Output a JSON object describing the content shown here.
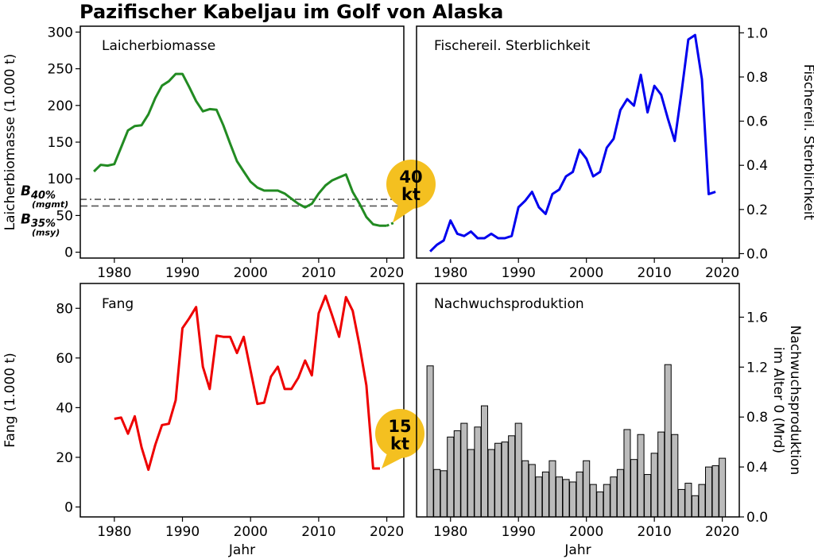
{
  "figure": {
    "title": "Pazifischer Kabeljau im Golf von Alaska"
  },
  "chart_data": [
    {
      "type": "line",
      "title": "Laicherbiomasse",
      "xlabel": "",
      "ylabel": "Laicherbiomasse (1.000 t)",
      "xlim": [
        1975,
        2022.5
      ],
      "ylim": [
        -8,
        308
      ],
      "xticks": [
        1980,
        1990,
        2000,
        2010,
        2020
      ],
      "yticks": [
        0,
        50,
        100,
        150,
        200,
        250,
        300
      ],
      "color": "#228B22",
      "x": [
        1977,
        1978,
        1979,
        1980,
        1981,
        1982,
        1983,
        1984,
        1985,
        1986,
        1987,
        1988,
        1989,
        1990,
        1991,
        1992,
        1993,
        1994,
        1995,
        1996,
        1997,
        1998,
        1999,
        2000,
        2001,
        2002,
        2003,
        2004,
        2005,
        2006,
        2007,
        2008,
        2009,
        2010,
        2011,
        2012,
        2013,
        2014,
        2015,
        2016,
        2017,
        2018,
        2019,
        2020
      ],
      "y": [
        110,
        119,
        118,
        120,
        143,
        166,
        172,
        173,
        188,
        210,
        227,
        233,
        243,
        243,
        225,
        206,
        192,
        195,
        194,
        173,
        148,
        124,
        110,
        96,
        88,
        84,
        84,
        84,
        80,
        73,
        66,
        61,
        66,
        80,
        91,
        98,
        102,
        106,
        82,
        66,
        48,
        38,
        36,
        36
      ],
      "projection": {
        "x": [
          2020,
          2021
        ],
        "y": [
          36,
          40
        ]
      },
      "reference_lines": [
        {
          "label": "B40%",
          "sublabel": "(mgmt)",
          "value": 72,
          "style": "dash-dot",
          "color": "#555555"
        },
        {
          "label": "B35%",
          "sublabel": "(msy)",
          "value": 63,
          "style": "dashed",
          "color": "#555555"
        }
      ],
      "callout": {
        "value": "40",
        "unit": "kt",
        "color": "#F4C020"
      }
    },
    {
      "type": "line",
      "title": "Fischereil. Sterblichkeit",
      "xlabel": "",
      "ylabel": "Fischereil. Sterblichkeit",
      "xlim": [
        1975,
        2022.5
      ],
      "ylim": [
        -0.02,
        1.03
      ],
      "xticks": [
        1980,
        1990,
        2000,
        2010,
        2020
      ],
      "yticks": [
        0.0,
        0.2,
        0.4,
        0.6,
        0.8,
        1.0
      ],
      "color": "#0000EE",
      "x": [
        1977,
        1978,
        1979,
        1980,
        1981,
        1982,
        1983,
        1984,
        1985,
        1986,
        1987,
        1988,
        1989,
        1990,
        1991,
        1992,
        1993,
        1994,
        1995,
        1996,
        1997,
        1998,
        1999,
        2000,
        2001,
        2002,
        2003,
        2004,
        2005,
        2006,
        2007,
        2008,
        2009,
        2010,
        2011,
        2012,
        2013,
        2014,
        2015,
        2016,
        2017,
        2018,
        2019
      ],
      "y": [
        0.01,
        0.04,
        0.06,
        0.15,
        0.09,
        0.08,
        0.1,
        0.07,
        0.07,
        0.09,
        0.07,
        0.07,
        0.08,
        0.21,
        0.24,
        0.28,
        0.21,
        0.18,
        0.27,
        0.29,
        0.35,
        0.37,
        0.47,
        0.43,
        0.35,
        0.37,
        0.48,
        0.52,
        0.65,
        0.7,
        0.67,
        0.81,
        0.64,
        0.76,
        0.72,
        0.61,
        0.51,
        0.73,
        0.97,
        0.99,
        0.79,
        0.27,
        0.28
      ]
    },
    {
      "type": "line",
      "title": "Fang",
      "xlabel": "Jahr",
      "ylabel": "Fang (1.000 t)",
      "xlim": [
        1975,
        2022.5
      ],
      "ylim": [
        -4,
        90
      ],
      "xticks": [
        1980,
        1990,
        2000,
        2010,
        2020
      ],
      "yticks": [
        0,
        20,
        40,
        60,
        80
      ],
      "color": "#EE0000",
      "x": [
        1980,
        1981,
        1982,
        1983,
        1984,
        1985,
        1986,
        1987,
        1988,
        1989,
        1990,
        1991,
        1992,
        1993,
        1994,
        1995,
        1996,
        1997,
        1998,
        1999,
        2000,
        2001,
        2002,
        2003,
        2004,
        2005,
        2006,
        2007,
        2008,
        2009,
        2010,
        2011,
        2012,
        2013,
        2014,
        2015,
        2016,
        2017,
        2018,
        2019
      ],
      "y": [
        35.5,
        36,
        29.5,
        36.5,
        24,
        15,
        25,
        33,
        33.5,
        43,
        72,
        76,
        80.5,
        56.5,
        47.5,
        69,
        68.5,
        68.5,
        62,
        68.5,
        55,
        41.5,
        42,
        52.5,
        56.5,
        47.5,
        47.5,
        52,
        59,
        53,
        78,
        85,
        77,
        68.5,
        84.5,
        79,
        65,
        49,
        15.5,
        15.5
      ],
      "callout": {
        "value": "15",
        "unit": "kt",
        "color": "#F4C020"
      }
    },
    {
      "type": "bar",
      "title": "Nachwuchsproduktion",
      "xlabel": "Jahr",
      "ylabel": "Nachwuchsproduktion im Alter 0 (Mrd)",
      "ylabel_lines": [
        "Nachwuchsproduktion",
        "im Alter 0 (Mrd)"
      ],
      "xlim": [
        1975,
        2022.5
      ],
      "ylim": [
        0,
        1.87
      ],
      "xticks": [
        1980,
        1990,
        2000,
        2010,
        2020
      ],
      "yticks": [
        0.0,
        0.4,
        0.8,
        1.2,
        1.6
      ],
      "color": "#BBBBBB",
      "x": [
        1977,
        1978,
        1979,
        1980,
        1981,
        1982,
        1983,
        1984,
        1985,
        1986,
        1987,
        1988,
        1989,
        1990,
        1991,
        1992,
        1993,
        1994,
        1995,
        1996,
        1997,
        1998,
        1999,
        2000,
        2001,
        2002,
        2003,
        2004,
        2005,
        2006,
        2007,
        2008,
        2009,
        2010,
        2011,
        2012,
        2013,
        2014,
        2015,
        2016,
        2017,
        2018,
        2019,
        2020
      ],
      "y": [
        1.21,
        0.38,
        0.37,
        0.64,
        0.69,
        0.75,
        0.54,
        0.72,
        0.89,
        0.54,
        0.59,
        0.6,
        0.65,
        0.75,
        0.45,
        0.42,
        0.32,
        0.36,
        0.45,
        0.32,
        0.3,
        0.28,
        0.36,
        0.45,
        0.26,
        0.2,
        0.26,
        0.32,
        0.38,
        0.7,
        0.46,
        0.66,
        0.34,
        0.51,
        0.68,
        1.22,
        0.66,
        0.22,
        0.27,
        0.17,
        0.26,
        0.4,
        0.41,
        0.47
      ]
    }
  ]
}
